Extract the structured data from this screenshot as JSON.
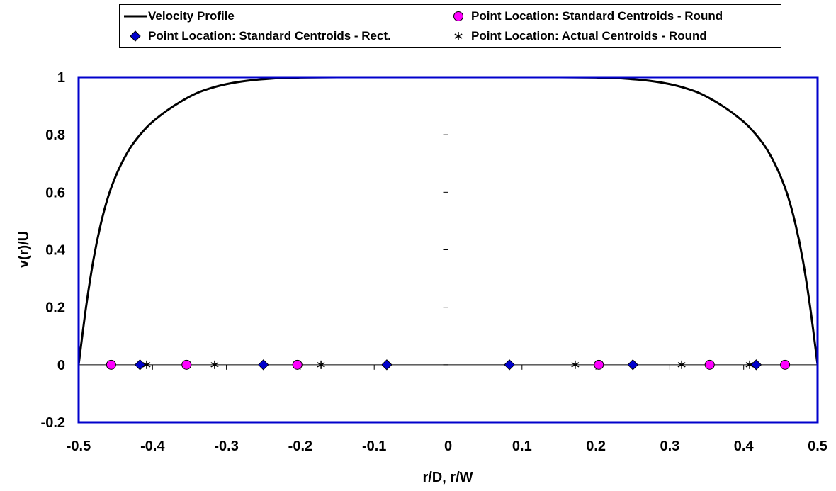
{
  "chart_data": {
    "type": "line",
    "xlabel": "r/D, r/W",
    "ylabel": "v(r)/U",
    "xlim": [
      -0.5,
      0.5
    ],
    "ylim": [
      -0.2,
      1.0
    ],
    "x_ticks": [
      "-0.5",
      "-0.4",
      "-0.3",
      "-0.2",
      "-0.1",
      "0",
      "0.1",
      "0.2",
      "0.3",
      "0.4",
      "0.5"
    ],
    "y_ticks": [
      "-0.2",
      "0",
      "0.2",
      "0.4",
      "0.6",
      "0.8",
      "1"
    ],
    "grid": false,
    "legend_position": "top",
    "colors": {
      "plot_border": "#0000cc",
      "profile_line": "#000000",
      "rect_marker": "#0000cc",
      "round_marker": "#ff00ff",
      "actual_marker": "#000000"
    },
    "series": [
      {
        "name": "Velocity Profile",
        "kind": "line",
        "x": [
          -0.5,
          -0.49,
          -0.48,
          -0.47,
          -0.46,
          -0.45,
          -0.44,
          -0.43,
          -0.42,
          -0.41,
          -0.4,
          -0.38,
          -0.36,
          -0.34,
          -0.32,
          -0.3,
          -0.28,
          -0.26,
          -0.24,
          -0.22,
          -0.2,
          -0.15,
          -0.1,
          0,
          0.1,
          0.15,
          0.2,
          0.22,
          0.24,
          0.26,
          0.28,
          0.3,
          0.32,
          0.34,
          0.36,
          0.38,
          0.4,
          0.41,
          0.42,
          0.43,
          0.44,
          0.45,
          0.46,
          0.47,
          0.48,
          0.49,
          0.5
        ],
        "y": [
          0,
          0.2,
          0.365,
          0.49,
          0.585,
          0.655,
          0.71,
          0.755,
          0.79,
          0.82,
          0.845,
          0.885,
          0.918,
          0.945,
          0.963,
          0.976,
          0.985,
          0.991,
          0.995,
          0.998,
          0.999,
          1,
          1,
          1,
          1,
          1,
          0.999,
          0.998,
          0.995,
          0.991,
          0.985,
          0.976,
          0.963,
          0.945,
          0.918,
          0.885,
          0.845,
          0.82,
          0.79,
          0.755,
          0.71,
          0.655,
          0.585,
          0.49,
          0.365,
          0.2,
          0
        ]
      },
      {
        "name": "Point Location: Standard Centroids - Rect.",
        "kind": "diamond",
        "x": [
          -0.417,
          -0.25,
          -0.083,
          0.083,
          0.25,
          0.417
        ],
        "y": [
          0,
          0,
          0,
          0,
          0,
          0
        ]
      },
      {
        "name": "Point Location: Standard Centroids - Round",
        "kind": "circle",
        "x": [
          -0.456,
          -0.354,
          -0.204,
          0.204,
          0.354,
          0.456
        ],
        "y": [
          0,
          0,
          0,
          0,
          0,
          0
        ]
      },
      {
        "name": "Point Location: Actual Centroids - Round",
        "kind": "asterisk",
        "x": [
          -0.408,
          -0.316,
          -0.172,
          0.172,
          0.316,
          0.408
        ],
        "y": [
          0,
          0,
          0,
          0,
          0,
          0
        ]
      }
    ]
  },
  "legend": {
    "velocity_profile": "Velocity Profile",
    "rect": "Point Location: Standard Centroids - Rect.",
    "round": "Point Location: Standard Centroids - Round",
    "actual": "Point Location: Actual Centroids - Round"
  }
}
